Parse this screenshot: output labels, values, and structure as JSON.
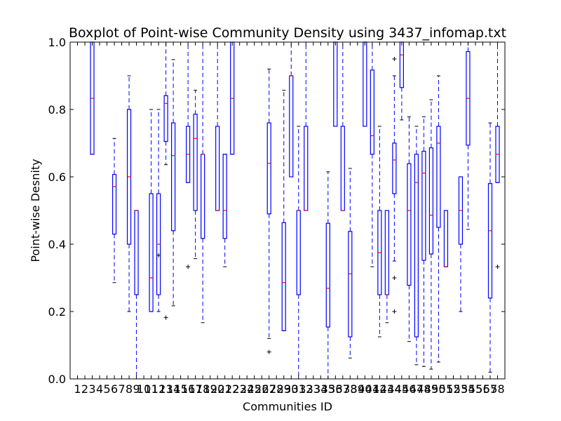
{
  "chart_data": {
    "type": "boxplot",
    "title": "Boxplot of Point-wise Community Density using 3437_infomap.txt",
    "xlabel": "Communities ID",
    "ylabel": "Point-wise Desnity",
    "ylim": [
      0.0,
      1.0
    ],
    "yticks": [
      "0.0",
      "0.2",
      "0.4",
      "0.6",
      "0.8",
      "1.0"
    ],
    "grid": false,
    "categories": [
      "1",
      "2",
      "3",
      "4",
      "5",
      "6",
      "7",
      "8",
      "9",
      "10",
      "11",
      "12",
      "13",
      "14",
      "15",
      "16",
      "17",
      "18",
      "19",
      "20",
      "21",
      "22",
      "23",
      "24",
      "25",
      "26",
      "27",
      "28",
      "29",
      "30",
      "31",
      "32",
      "33",
      "34",
      "35",
      "36",
      "37",
      "38",
      "39",
      "40",
      "41",
      "42",
      "43",
      "44",
      "45",
      "46",
      "47",
      "48",
      "49",
      "50",
      "51",
      "52",
      "53",
      "54",
      "55",
      "56",
      "57",
      "58"
    ],
    "colors": {
      "box": "#0000ff",
      "median": "#ff0000",
      "flier": "#000000"
    },
    "boxes": [
      {
        "id": 3,
        "whislo": 0.667,
        "q1": 0.667,
        "med": 0.833,
        "q3": 1.0,
        "whishi": 1.0,
        "fliers": []
      },
      {
        "id": 6,
        "whislo": 0.286,
        "q1": 0.43,
        "med": 0.571,
        "q3": 0.607,
        "whishi": 0.714,
        "fliers": []
      },
      {
        "id": 8,
        "whislo": 0.2,
        "q1": 0.4,
        "med": 0.6,
        "q3": 0.8,
        "whishi": 0.9,
        "fliers": []
      },
      {
        "id": 9,
        "whislo": 0.0,
        "q1": 0.25,
        "med": 0.5,
        "q3": 0.5,
        "whishi": 0.5,
        "fliers": []
      },
      {
        "id": 11,
        "whislo": 0.2,
        "q1": 0.2,
        "med": 0.3,
        "q3": 0.55,
        "whishi": 0.8,
        "fliers": []
      },
      {
        "id": 12,
        "whislo": 0.2,
        "q1": 0.25,
        "med": 0.4,
        "q3": 0.55,
        "whishi": 0.8,
        "fliers": [
          0.367
        ]
      },
      {
        "id": 13,
        "whislo": 0.636,
        "q1": 0.705,
        "med": 0.818,
        "q3": 0.841,
        "whishi": 1.0,
        "fliers": [
          0.182
        ]
      },
      {
        "id": 14,
        "whislo": 0.217,
        "q1": 0.44,
        "med": 0.663,
        "q3": 0.76,
        "whishi": 0.948,
        "fliers": []
      },
      {
        "id": 16,
        "whislo": 0.583,
        "q1": 0.583,
        "med": 0.667,
        "q3": 0.75,
        "whishi": 1.0,
        "fliers": [
          0.333
        ]
      },
      {
        "id": 17,
        "whislo": 0.357,
        "q1": 0.5,
        "med": 0.714,
        "q3": 0.786,
        "whishi": 0.857,
        "fliers": []
      },
      {
        "id": 18,
        "whislo": 0.167,
        "q1": 0.417,
        "med": 0.667,
        "q3": 0.667,
        "whishi": 1.0,
        "fliers": []
      },
      {
        "id": 20,
        "whislo": 0.5,
        "q1": 0.5,
        "med": 0.5,
        "q3": 0.75,
        "whishi": 1.0,
        "fliers": []
      },
      {
        "id": 21,
        "whislo": 0.333,
        "q1": 0.417,
        "med": 0.5,
        "q3": 0.667,
        "whishi": 0.667,
        "fliers": []
      },
      {
        "id": 22,
        "whislo": 0.667,
        "q1": 0.667,
        "med": 0.833,
        "q3": 1.0,
        "whishi": 1.0,
        "fliers": []
      },
      {
        "id": 27,
        "whislo": 0.12,
        "q1": 0.49,
        "med": 0.64,
        "q3": 0.76,
        "whishi": 0.92,
        "fliers": [
          0.08
        ]
      },
      {
        "id": 29,
        "whislo": 0.143,
        "q1": 0.143,
        "med": 0.286,
        "q3": 0.464,
        "whishi": 0.857,
        "fliers": []
      },
      {
        "id": 30,
        "whislo": 0.6,
        "q1": 0.6,
        "med": 0.9,
        "q3": 0.9,
        "whishi": 1.0,
        "fliers": []
      },
      {
        "id": 31,
        "whislo": 0.0,
        "q1": 0.25,
        "med": 0.5,
        "q3": 0.5,
        "whishi": 0.75,
        "fliers": []
      },
      {
        "id": 32,
        "whislo": 0.5,
        "q1": 0.5,
        "med": 0.5,
        "q3": 0.75,
        "whishi": 1.0,
        "fliers": []
      },
      {
        "id": 35,
        "whislo": 0.0,
        "q1": 0.154,
        "med": 0.269,
        "q3": 0.462,
        "whishi": 0.615,
        "fliers": []
      },
      {
        "id": 36,
        "whislo": 0.75,
        "q1": 0.75,
        "med": 1.0,
        "q3": 1.0,
        "whishi": 1.0,
        "fliers": []
      },
      {
        "id": 37,
        "whislo": 0.5,
        "q1": 0.5,
        "med": 0.5,
        "q3": 0.75,
        "whishi": 1.0,
        "fliers": []
      },
      {
        "id": 38,
        "whislo": 0.062,
        "q1": 0.125,
        "med": 0.312,
        "q3": 0.438,
        "whishi": 0.625,
        "fliers": []
      },
      {
        "id": 40,
        "whislo": 0.75,
        "q1": 0.75,
        "med": 1.0,
        "q3": 1.0,
        "whishi": 1.0,
        "fliers": []
      },
      {
        "id": 41,
        "whislo": 0.333,
        "q1": 0.667,
        "med": 0.722,
        "q3": 0.917,
        "whishi": 1.0,
        "fliers": []
      },
      {
        "id": 42,
        "whislo": 0.125,
        "q1": 0.25,
        "med": 0.375,
        "q3": 0.5,
        "whishi": 0.75,
        "fliers": []
      },
      {
        "id": 43,
        "whislo": 0.167,
        "q1": 0.25,
        "med": 0.25,
        "q3": 0.5,
        "whishi": 0.5,
        "fliers": []
      },
      {
        "id": 44,
        "whislo": 0.35,
        "q1": 0.55,
        "med": 0.65,
        "q3": 0.7,
        "whishi": 0.9,
        "fliers": [
          0.2,
          0.3,
          0.95
        ]
      },
      {
        "id": 45,
        "whislo": 0.769,
        "q1": 0.865,
        "med": 0.962,
        "q3": 1.0,
        "whishi": 1.0,
        "fliers": []
      },
      {
        "id": 46,
        "whislo": 0.111,
        "q1": 0.278,
        "med": 0.5,
        "q3": 0.639,
        "whishi": 0.778,
        "fliers": []
      },
      {
        "id": 47,
        "whislo": 0.042,
        "q1": 0.125,
        "med": 0.583,
        "q3": 0.667,
        "whishi": 0.75,
        "fliers": []
      },
      {
        "id": 48,
        "whislo": 0.037,
        "q1": 0.352,
        "med": 0.611,
        "q3": 0.676,
        "whishi": 0.778,
        "fliers": []
      },
      {
        "id": 49,
        "whislo": 0.029,
        "q1": 0.371,
        "med": 0.486,
        "q3": 0.686,
        "whishi": 0.829,
        "fliers": []
      },
      {
        "id": 50,
        "whislo": 0.05,
        "q1": 0.45,
        "med": 0.7,
        "q3": 0.75,
        "whishi": 0.9,
        "fliers": []
      },
      {
        "id": 51,
        "whislo": 0.333,
        "q1": 0.333,
        "med": 0.333,
        "q3": 0.5,
        "whishi": 0.5,
        "fliers": []
      },
      {
        "id": 53,
        "whislo": 0.2,
        "q1": 0.4,
        "med": 0.5,
        "q3": 0.6,
        "whishi": 0.6,
        "fliers": []
      },
      {
        "id": 54,
        "whislo": 0.444,
        "q1": 0.694,
        "med": 0.833,
        "q3": 0.972,
        "whishi": 1.0,
        "fliers": []
      },
      {
        "id": 57,
        "whislo": 0.02,
        "q1": 0.24,
        "med": 0.44,
        "q3": 0.58,
        "whishi": 0.76,
        "fliers": []
      },
      {
        "id": 58,
        "whislo": 0.583,
        "q1": 0.583,
        "med": 0.667,
        "q3": 0.75,
        "whishi": 1.0,
        "fliers": [
          0.333
        ]
      }
    ]
  }
}
